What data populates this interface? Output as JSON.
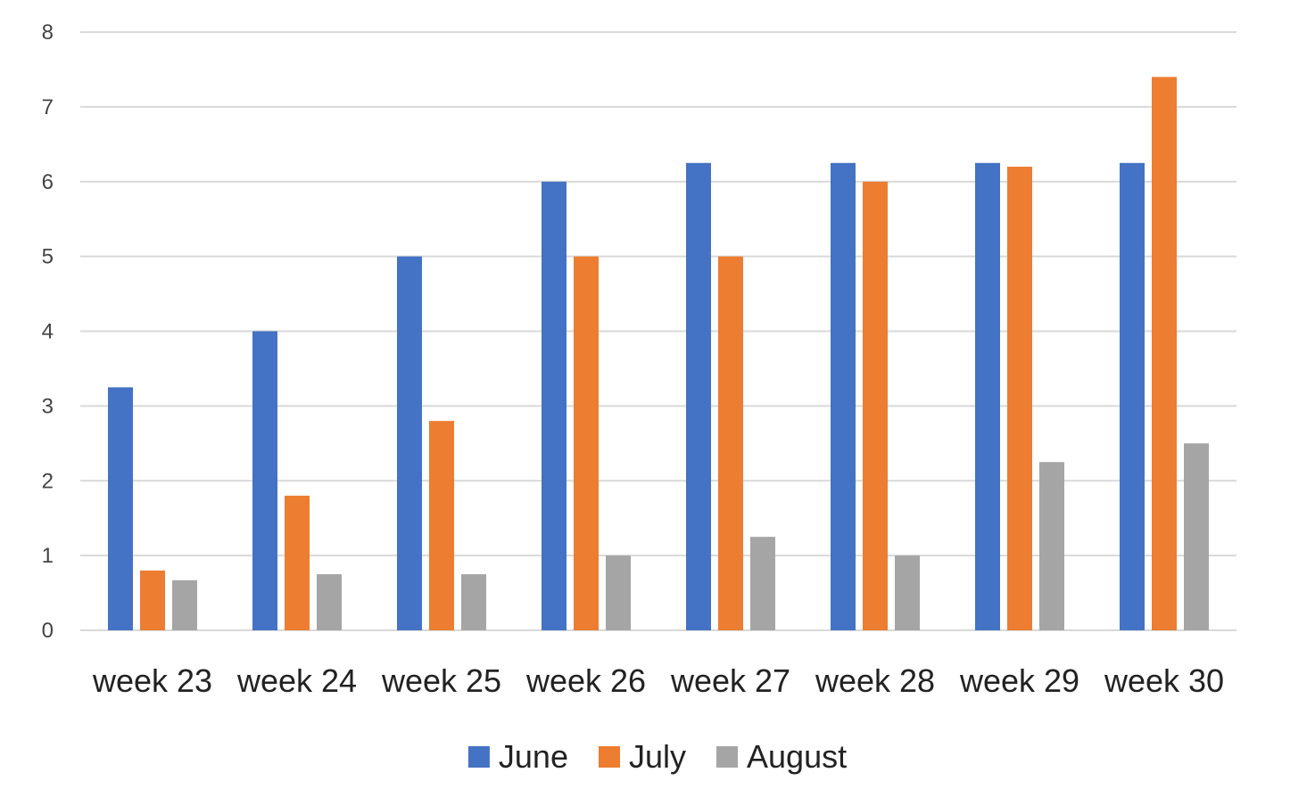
{
  "chart_data": {
    "type": "bar",
    "categories": [
      "week 23",
      "week 24",
      "week 25",
      "week 26",
      "week 27",
      "week 28",
      "week 29",
      "week 30"
    ],
    "series": [
      {
        "name": "June",
        "color": "#4472C4",
        "values": [
          3.25,
          4,
          5,
          6,
          6.25,
          6.25,
          6.25,
          6.25
        ]
      },
      {
        "name": "July",
        "color": "#ED7D31",
        "values": [
          0.8,
          1.8,
          2.8,
          5,
          5,
          6,
          6.2,
          7.4
        ]
      },
      {
        "name": "August",
        "color": "#A5A5A5",
        "values": [
          0.67,
          0.75,
          0.75,
          1,
          1.25,
          1,
          2.25,
          2.5
        ]
      }
    ],
    "title": "",
    "xlabel": "",
    "ylabel": "",
    "ylim": [
      0,
      8
    ],
    "yticks": [
      "0",
      "1",
      "2",
      "3",
      "4",
      "5",
      "6",
      "7",
      "8"
    ],
    "grid": true,
    "legend_position": "bottom",
    "gridline_color": "#D9D9D9"
  }
}
